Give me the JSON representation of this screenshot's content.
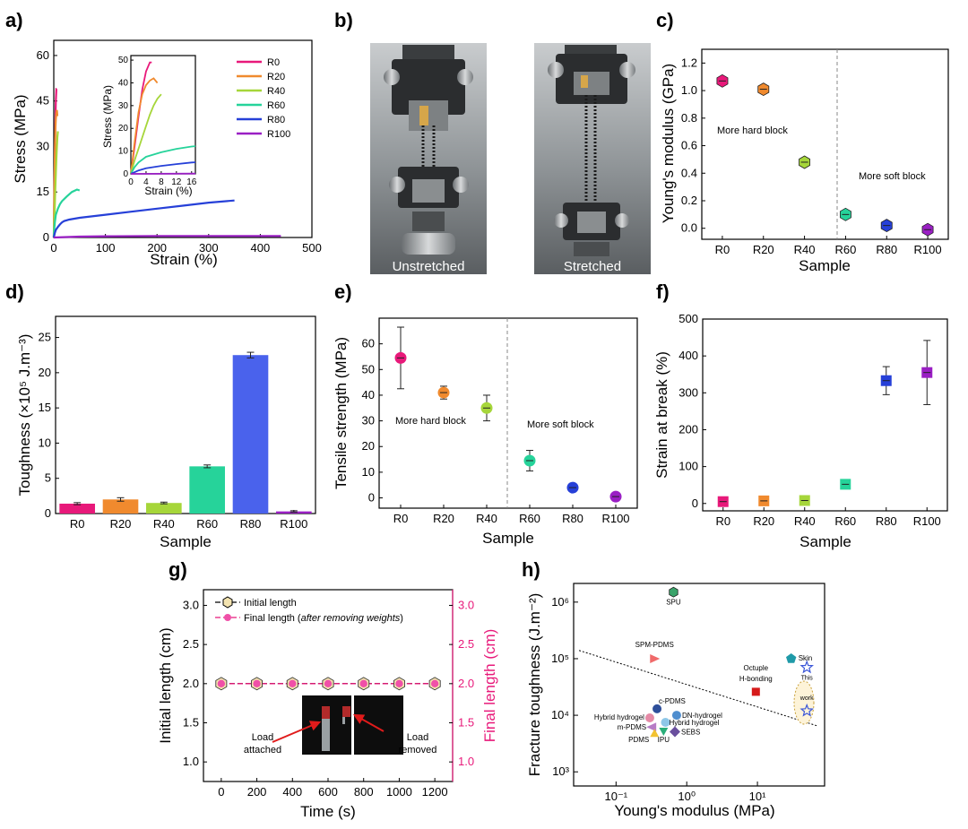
{
  "panel_labels": [
    "a)",
    "b)",
    "c)",
    "d)",
    "e)",
    "f)",
    "g)",
    "h)"
  ],
  "colors": {
    "R0": "#e8197a",
    "R20": "#f08a2e",
    "R40": "#a6d63a",
    "R60": "#26d39a",
    "R80": "#2640d8",
    "R100": "#9a1fc4",
    "bar_R80": "#4a62ec"
  },
  "chart_data": [
    {
      "id": "a",
      "type": "line",
      "xlabel": "Strain (%)",
      "ylabel": "Stress (MPa)",
      "xlim": [
        0,
        500
      ],
      "ylim": [
        0,
        65
      ],
      "xticks": [
        0,
        100,
        200,
        300,
        400,
        500
      ],
      "yticks": [
        0,
        15,
        30,
        45,
        60
      ],
      "series": [
        {
          "name": "R0",
          "x": [
            0,
            1,
            2,
            3,
            4,
            5,
            5.5
          ],
          "y": [
            0,
            12,
            25,
            37,
            45,
            49,
            49
          ]
        },
        {
          "name": "R20",
          "x": [
            0,
            1,
            2,
            3,
            4,
            5,
            6,
            7
          ],
          "y": [
            0,
            14,
            27,
            35,
            39,
            41,
            42,
            40
          ]
        },
        {
          "name": "R40",
          "x": [
            0,
            1,
            2,
            3,
            4,
            5,
            6,
            7,
            8
          ],
          "y": [
            0,
            6,
            11,
            16,
            21,
            26,
            30,
            33,
            35
          ]
        },
        {
          "name": "R60",
          "x": [
            0,
            1,
            2,
            4,
            8,
            12,
            16,
            25,
            35,
            45,
            50
          ],
          "y": [
            0,
            3,
            5,
            7.5,
            9.5,
            11,
            12,
            13.5,
            15,
            15.8,
            15.5
          ]
        },
        {
          "name": "R80",
          "x": [
            0,
            2,
            4,
            8,
            12,
            16,
            20,
            30,
            50,
            100,
            150,
            200,
            250,
            300,
            350
          ],
          "y": [
            0,
            1.5,
            2.5,
            3.5,
            4.3,
            5,
            5.4,
            5.9,
            6.5,
            7.5,
            8.5,
            9.5,
            10.5,
            11.5,
            12.2
          ]
        },
        {
          "name": "R100",
          "x": [
            0,
            50,
            100,
            200,
            300,
            440
          ],
          "y": [
            0,
            0.3,
            0.4,
            0.5,
            0.5,
            0.5
          ]
        }
      ],
      "inset": {
        "xlabel": "Strain (%)",
        "ylabel": "Stress (MPa)",
        "xlim": [
          0,
          17
        ],
        "ylim": [
          0,
          52
        ],
        "xticks": [
          0,
          4,
          8,
          12,
          16
        ],
        "yticks": [
          0,
          10,
          20,
          30,
          40,
          50
        ]
      },
      "legend": [
        "R0",
        "R20",
        "R40",
        "R60",
        "R80",
        "R100"
      ]
    },
    {
      "id": "b",
      "type": "photo",
      "captions": [
        "Unstretched",
        "Stretched"
      ]
    },
    {
      "id": "c",
      "type": "scatter",
      "xlabel": "Sample",
      "ylabel": "Young's modulus (GPa)",
      "categories": [
        "R0",
        "R20",
        "R40",
        "R60",
        "R80",
        "R100"
      ],
      "values": [
        1.07,
        1.01,
        0.48,
        0.1,
        0.02,
        -0.01
      ],
      "errors": [
        0.02,
        0.02,
        0.02,
        0.02,
        0.02,
        0.02
      ],
      "ylim": [
        -0.08,
        1.3
      ],
      "yticks": [
        0.0,
        0.2,
        0.4,
        0.6,
        0.8,
        1.0,
        1.2
      ],
      "annotations": [
        "More hard block",
        "More soft block"
      ]
    },
    {
      "id": "d",
      "type": "bar",
      "xlabel": "Sample",
      "ylabel": "Toughness (×10⁵ J.m⁻³)",
      "categories": [
        "R0",
        "R20",
        "R40",
        "R60",
        "R80",
        "R100"
      ],
      "values": [
        1.4,
        2.0,
        1.5,
        6.7,
        22.5,
        0.3
      ],
      "errors": [
        0.15,
        0.25,
        0.12,
        0.2,
        0.4,
        0.1
      ],
      "ylim": [
        0,
        28
      ],
      "yticks": [
        0,
        5,
        10,
        15,
        20,
        25
      ]
    },
    {
      "id": "e",
      "type": "scatter",
      "xlabel": "Sample",
      "ylabel": "Tensile strength (MPa)",
      "categories": [
        "R0",
        "R20",
        "R40",
        "R60",
        "R80",
        "R100"
      ],
      "values": [
        54.5,
        41,
        35,
        14.5,
        4,
        0.5
      ],
      "errors": [
        12,
        2.5,
        5,
        4,
        1,
        0.5
      ],
      "ylim": [
        -4,
        70
      ],
      "yticks": [
        0,
        10,
        20,
        30,
        40,
        50,
        60
      ],
      "annotations": [
        "More hard block",
        "More soft block"
      ]
    },
    {
      "id": "f",
      "type": "scatter",
      "xlabel": "Sample",
      "ylabel": "Strain at break (%)",
      "categories": [
        "R0",
        "R20",
        "R40",
        "R60",
        "R80",
        "R100"
      ],
      "values": [
        5,
        7,
        8,
        52,
        333,
        355
      ],
      "errors": [
        2,
        2,
        3,
        10,
        38,
        87
      ],
      "ylim": [
        -20,
        500
      ],
      "yticks": [
        0,
        100,
        200,
        300,
        400,
        500
      ]
    },
    {
      "id": "g",
      "type": "line",
      "xlabel": "Time (s)",
      "ylabel": "Initial length (cm)",
      "ylabel_right": "Final length (cm)",
      "x": [
        0,
        200,
        400,
        600,
        800,
        1000,
        1200
      ],
      "series": [
        {
          "name": "Initial length",
          "values": [
            2.0,
            2.0,
            2.0,
            2.0,
            2.0,
            2.0,
            2.0
          ]
        },
        {
          "name": "Final length",
          "values": [
            2.0,
            2.0,
            2.0,
            2.0,
            2.0,
            2.0,
            2.0
          ]
        }
      ],
      "legend_initial": "Initial length",
      "legend_final_prefix": "Final length (",
      "legend_final_italic": "after removing weights",
      "legend_final_suffix": ")",
      "xlim": [
        -100,
        1300
      ],
      "ylim": [
        0.75,
        3.2
      ],
      "xticks": [
        0,
        200,
        400,
        600,
        800,
        1000,
        1200
      ],
      "yticks": [
        1.0,
        1.5,
        2.0,
        2.5,
        3.0
      ],
      "yticks_right": [
        1.0,
        1.5,
        2.0,
        2.5,
        3.0
      ],
      "photo_labels": [
        "Load",
        "attached",
        "Load",
        "removed"
      ]
    },
    {
      "id": "h",
      "type": "scatter",
      "xlabel": "Young's modulus (MPa)",
      "ylabel": "Fracture toughness (J.m⁻²)",
      "xscale": "log",
      "yscale": "log",
      "xticks": [
        "10⁻¹",
        "10⁰",
        "10¹"
      ],
      "yticks": [
        "10³",
        "10⁴",
        "10⁵",
        "10⁶"
      ],
      "points": [
        {
          "label": "SPU",
          "x": 0.65,
          "y": 1500000
        },
        {
          "label": "SPM-PDMS",
          "x": 0.35,
          "y": 100000
        },
        {
          "label": "Octuple",
          "x": 9.5,
          "y": 26000
        },
        {
          "label": "H-bonding",
          "x": 9.5,
          "y": 26000
        },
        {
          "label": "Skin",
          "x": 30,
          "y": 100000
        },
        {
          "label": "c-PDMS",
          "x": 0.38,
          "y": 13000
        },
        {
          "label": "DN-hydrogel",
          "x": 0.72,
          "y": 10000
        },
        {
          "label": "Hybrid hydrogel",
          "x": 0.3,
          "y": 9000
        },
        {
          "label": "Hybrid hydrogel",
          "x": 0.5,
          "y": 7500
        },
        {
          "label": "m-PDMS",
          "x": 0.32,
          "y": 6200
        },
        {
          "label": "IPU",
          "x": 0.47,
          "y": 5200
        },
        {
          "label": "PDMS",
          "x": 0.35,
          "y": 4800
        },
        {
          "label": "SEBS",
          "x": 0.68,
          "y": 5100
        },
        {
          "label": "This",
          "x": 50,
          "y": 70000
        },
        {
          "label": "work",
          "x": 50,
          "y": 12000
        }
      ],
      "trend_line": {
        "x": [
          0.03,
          70
        ],
        "y": [
          140000,
          6500
        ]
      }
    }
  ]
}
